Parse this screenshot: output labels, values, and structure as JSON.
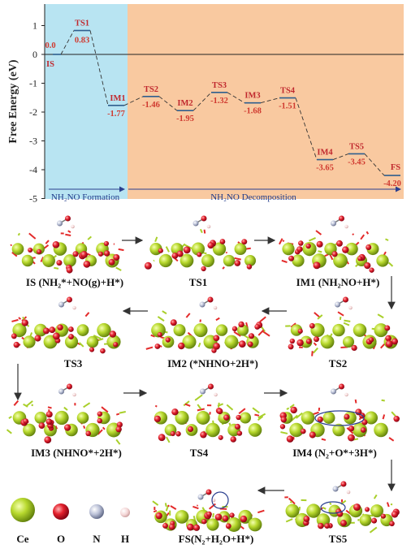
{
  "energy_diagram": {
    "ylabel": "Free Energy (eV)",
    "y_ticks": [
      "1",
      "0",
      "-1",
      "-2",
      "-3",
      "-4",
      "-5"
    ],
    "regions": [
      {
        "label": "NH₂NO Formation",
        "color": "#b8e4f2"
      },
      {
        "label": "NH₂NO Decomposition",
        "color": "#f9c9a0"
      }
    ],
    "states": [
      {
        "name": "IS",
        "value": 0.0,
        "label": "0.0"
      },
      {
        "name": "TS1",
        "value": 0.83,
        "label": "0.83"
      },
      {
        "name": "IM1",
        "value": -1.77,
        "label": "-1.77"
      },
      {
        "name": "TS2",
        "value": -1.46,
        "label": "-1.46"
      },
      {
        "name": "IM2",
        "value": -1.95,
        "label": "-1.95"
      },
      {
        "name": "TS3",
        "value": -1.32,
        "label": "-1.32"
      },
      {
        "name": "IM3",
        "value": -1.68,
        "label": "-1.68"
      },
      {
        "name": "TS4",
        "value": -1.51,
        "label": "-1.51"
      },
      {
        "name": "IM4",
        "value": -3.65,
        "label": "-3.65"
      },
      {
        "name": "TS5",
        "value": -3.45,
        "label": "-3.45"
      },
      {
        "name": "FS",
        "value": -4.2,
        "label": "-4.20"
      }
    ],
    "y_range": [
      -5,
      1.5
    ],
    "name_color": "#c0282e",
    "value_color": "#d03a30",
    "level_color": "#2f5f8e"
  },
  "structures": {
    "captions": [
      "IS (NH₂*+NO(g)+H*)",
      "TS1",
      "IM1 (NH₂NO+H*)",
      "TS3",
      "IM2 (*NHNO+2H*)",
      "TS2",
      "IM3 (NHNO*+2H*)",
      "TS4",
      "IM4 (N₂+O*+3H*)",
      "FS(N₂+H₂O+H*)",
      "TS5"
    ]
  },
  "legend": {
    "items": [
      {
        "label": "Ce",
        "color": "#b5d630"
      },
      {
        "label": "O",
        "color": "#e0204a"
      },
      {
        "label": "N",
        "color": "#c8ccdc"
      },
      {
        "label": "H",
        "color": "#f4dede"
      }
    ]
  },
  "colors": {
    "ce": "#a9cf2a",
    "o": "#e32a2a",
    "n": "#8e98b6",
    "h": "#f2caca",
    "arrow": "#333333"
  }
}
